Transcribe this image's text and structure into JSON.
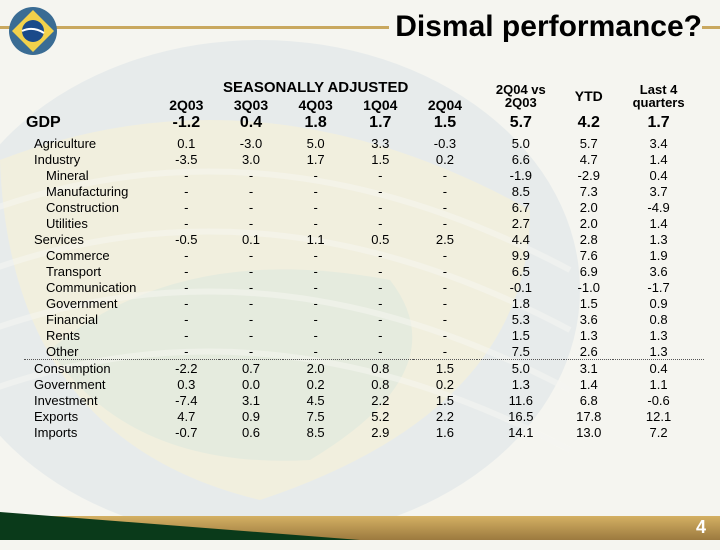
{
  "title": "Dismal performance?",
  "page_number": "4",
  "sa_header": "SEASONALLY ADJUSTED",
  "columns": [
    "2Q03",
    "3Q03",
    "4Q03",
    "1Q04",
    "2Q04",
    "2Q04 vs\n2Q03",
    "YTD",
    "Last 4\nquarters"
  ],
  "gdp_label": "GDP",
  "gdp_values": [
    "-1.2",
    "0.4",
    "1.8",
    "1.7",
    "1.5",
    "5.7",
    "4.2",
    "1.7"
  ],
  "rows": [
    {
      "label": "Agriculture",
      "indent": 1,
      "values": [
        "0.1",
        "-3.0",
        "5.0",
        "3.3",
        "-0.3",
        "5.0",
        "5.7",
        "3.4"
      ]
    },
    {
      "label": "Industry",
      "indent": 1,
      "values": [
        "-3.5",
        "3.0",
        "1.7",
        "1.5",
        "0.2",
        "6.6",
        "4.7",
        "1.4"
      ]
    },
    {
      "label": "Mineral",
      "indent": 2,
      "values": [
        "-",
        "-",
        "-",
        "-",
        "-",
        "-1.9",
        "-2.9",
        "0.4"
      ]
    },
    {
      "label": "Manufacturing",
      "indent": 2,
      "values": [
        "-",
        "-",
        "-",
        "-",
        "-",
        "8.5",
        "7.3",
        "3.7"
      ]
    },
    {
      "label": "Construction",
      "indent": 2,
      "values": [
        "-",
        "-",
        "-",
        "-",
        "-",
        "6.7",
        "2.0",
        "-4.9"
      ]
    },
    {
      "label": "Utilities",
      "indent": 2,
      "values": [
        "-",
        "-",
        "-",
        "-",
        "-",
        "2.7",
        "2.0",
        "1.4"
      ]
    },
    {
      "label": "Services",
      "indent": 1,
      "values": [
        "-0.5",
        "0.1",
        "1.1",
        "0.5",
        "2.5",
        "4.4",
        "2.8",
        "1.3"
      ]
    },
    {
      "label": "Commerce",
      "indent": 2,
      "values": [
        "-",
        "-",
        "-",
        "-",
        "-",
        "9.9",
        "7.6",
        "1.9"
      ]
    },
    {
      "label": "Transport",
      "indent": 2,
      "values": [
        "-",
        "-",
        "-",
        "-",
        "-",
        "6.5",
        "6.9",
        "3.6"
      ]
    },
    {
      "label": "Communication",
      "indent": 2,
      "values": [
        "-",
        "-",
        "-",
        "-",
        "-",
        "-0.1",
        "-1.0",
        "-1.7"
      ]
    },
    {
      "label": "Government",
      "indent": 2,
      "values": [
        "-",
        "-",
        "-",
        "-",
        "-",
        "1.8",
        "1.5",
        "0.9"
      ]
    },
    {
      "label": "Financial",
      "indent": 2,
      "values": [
        "-",
        "-",
        "-",
        "-",
        "-",
        "5.3",
        "3.6",
        "0.8"
      ]
    },
    {
      "label": "Rents",
      "indent": 2,
      "values": [
        "-",
        "-",
        "-",
        "-",
        "-",
        "1.5",
        "1.3",
        "1.3"
      ]
    },
    {
      "label": "Other",
      "indent": 2,
      "values": [
        "-",
        "-",
        "-",
        "-",
        "-",
        "7.5",
        "2.6",
        "1.3"
      ]
    }
  ],
  "rows_bottom": [
    {
      "label": "Consumption",
      "indent": 1,
      "values": [
        "-2.2",
        "0.7",
        "2.0",
        "0.8",
        "1.5",
        "5.0",
        "3.1",
        "0.4"
      ]
    },
    {
      "label": "Government",
      "indent": 1,
      "values": [
        "0.3",
        "0.0",
        "0.2",
        "0.8",
        "0.2",
        "1.3",
        "1.4",
        "1.1"
      ]
    },
    {
      "label": "Investment",
      "indent": 1,
      "values": [
        "-7.4",
        "3.1",
        "4.5",
        "2.2",
        "1.5",
        "11.6",
        "6.8",
        "-0.6"
      ]
    },
    {
      "label": "Exports",
      "indent": 1,
      "values": [
        "4.7",
        "0.9",
        "7.5",
        "5.2",
        "2.2",
        "16.5",
        "17.8",
        "12.1"
      ]
    },
    {
      "label": "Imports",
      "indent": 1,
      "values": [
        "-0.7",
        "0.6",
        "8.5",
        "2.9",
        "1.6",
        "14.1",
        "13.0",
        "7.2"
      ]
    }
  ],
  "colors": {
    "title_text": "#000000",
    "gold_line": "#c9a85f",
    "bottom_dark": "#0a3a1a",
    "bottom_gold_top": "#d4b063",
    "bottom_gold_bot": "#9c7a3f",
    "bg": "#f5f5f0",
    "watermark_blue": "#a9c0d6",
    "watermark_yellow": "#e0d48a",
    "watermark_green": "#9bbf8c"
  }
}
